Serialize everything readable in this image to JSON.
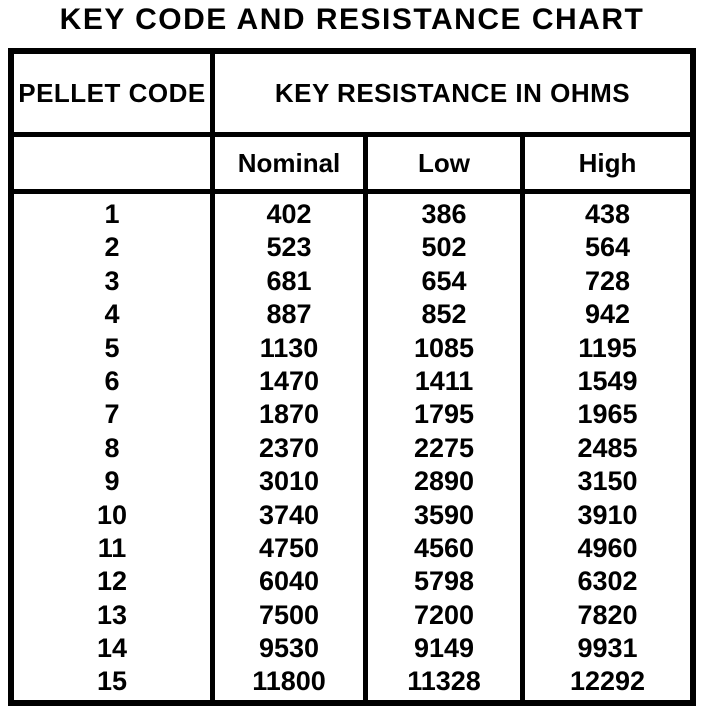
{
  "title": "KEY CODE AND RESISTANCE CHART",
  "colors": {
    "background": "#ffffff",
    "border": "#000000",
    "text": "#000000"
  },
  "chart_data": {
    "type": "table",
    "title": "KEY CODE AND RESISTANCE CHART",
    "row_header": "PELLET CODE",
    "col_group_header": "KEY RESISTANCE IN OHMS",
    "columns": [
      "Nominal",
      "Low",
      "High"
    ],
    "rows": [
      {
        "code": "1",
        "nominal": "402",
        "low": "386",
        "high": "438"
      },
      {
        "code": "2",
        "nominal": "523",
        "low": "502",
        "high": "564"
      },
      {
        "code": "3",
        "nominal": "681",
        "low": "654",
        "high": "728"
      },
      {
        "code": "4",
        "nominal": "887",
        "low": "852",
        "high": "942"
      },
      {
        "code": "5",
        "nominal": "1130",
        "low": "1085",
        "high": "1195"
      },
      {
        "code": "6",
        "nominal": "1470",
        "low": "1411",
        "high": "1549"
      },
      {
        "code": "7",
        "nominal": "1870",
        "low": "1795",
        "high": "1965"
      },
      {
        "code": "8",
        "nominal": "2370",
        "low": "2275",
        "high": "2485"
      },
      {
        "code": "9",
        "nominal": "3010",
        "low": "2890",
        "high": "3150"
      },
      {
        "code": "10",
        "nominal": "3740",
        "low": "3590",
        "high": "3910"
      },
      {
        "code": "11",
        "nominal": "4750",
        "low": "4560",
        "high": "4960"
      },
      {
        "code": "12",
        "nominal": "6040",
        "low": "5798",
        "high": "6302"
      },
      {
        "code": "13",
        "nominal": "7500",
        "low": "7200",
        "high": "7820"
      },
      {
        "code": "14",
        "nominal": "9530",
        "low": "9149",
        "high": "9931"
      },
      {
        "code": "15",
        "nominal": "11800",
        "low": "11328",
        "high": "12292"
      }
    ]
  }
}
